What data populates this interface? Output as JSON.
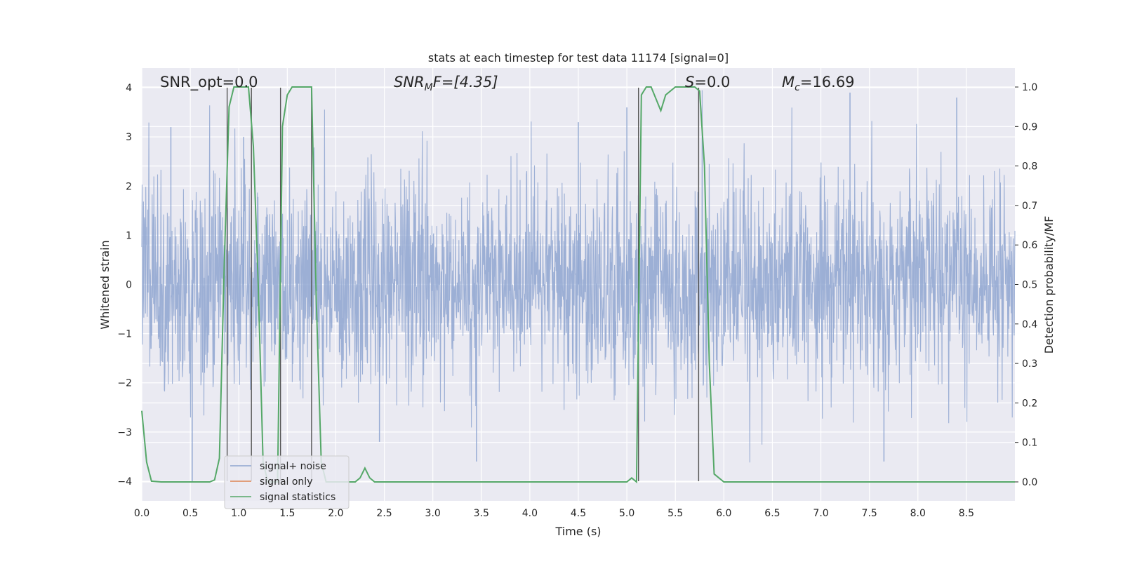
{
  "chart_data": {
    "type": "line",
    "title": "stats at each timestep for test data 11174 [signal=0]",
    "xlabel": "Time (s)",
    "ylabel": "Whitened strain",
    "ylabel_right": "Detection probability/MF",
    "xlim": [
      0.0,
      9.0
    ],
    "ylim": [
      -4.4,
      4.4
    ],
    "ylim_right": [
      -0.048,
      1.048
    ],
    "x_ticks": [
      "0.0",
      "0.5",
      "1.0",
      "1.5",
      "2.0",
      "2.5",
      "3.0",
      "3.5",
      "4.0",
      "4.5",
      "5.0",
      "5.5",
      "6.0",
      "6.5",
      "7.0",
      "7.5",
      "8.0",
      "8.5"
    ],
    "y_ticks": [
      "4",
      "3",
      "2",
      "1",
      "0",
      "−1",
      "−2",
      "−3",
      "−4"
    ],
    "y_ticks_right": [
      "1.0",
      "0.9",
      "0.8",
      "0.7",
      "0.6",
      "0.5",
      "0.4",
      "0.3",
      "0.2",
      "0.1",
      "0.0"
    ],
    "grid": true,
    "legend_position": "lower-left",
    "annotations": {
      "snr_opt": "SNR_opt=0.0",
      "snr_mf_main": "SNR",
      "snr_mf_sub": "M",
      "snr_mf_rest": "F=[4.35]",
      "s_main": "S",
      "s_rest": "=0.0",
      "mc_main": "M",
      "mc_sub": "c",
      "mc_rest": "=16.69"
    },
    "series": [
      {
        "name": "signal+ noise",
        "color": "#8ea5d0",
        "description_values": "dense whitened noise, amplitude roughly within [-4, 4], x from 0 to 9 s",
        "envelope_top_peaks": [
          [
            0.3,
            3.2
          ],
          [
            1.05,
            3.0
          ],
          [
            4.5,
            3.3
          ],
          [
            5.0,
            3.6
          ],
          [
            7.3,
            3.9
          ],
          [
            8.4,
            3.8
          ]
        ],
        "envelope_bottom_peaks": [
          [
            0.52,
            -4.0
          ],
          [
            3.45,
            -3.6
          ],
          [
            7.65,
            -3.6
          ],
          [
            2.45,
            -3.2
          ]
        ]
      },
      {
        "name": "signal only",
        "color": "#dd8452",
        "values": []
      },
      {
        "name": "signal statistics",
        "color": "#55a868",
        "axis": "right",
        "x": [
          0.0,
          0.05,
          0.1,
          0.2,
          0.5,
          0.7,
          0.75,
          0.8,
          0.85,
          0.9,
          0.95,
          1.0,
          1.05,
          1.1,
          1.15,
          1.2,
          1.25,
          1.3,
          1.35,
          1.4,
          1.45,
          1.5,
          1.55,
          1.7,
          1.75,
          1.8,
          1.85,
          1.9,
          2.0,
          2.1,
          2.2,
          2.25,
          2.3,
          2.35,
          2.4,
          2.45,
          3.0,
          4.0,
          5.0,
          5.05,
          5.1,
          5.15,
          5.2,
          5.25,
          5.3,
          5.35,
          5.4,
          5.5,
          5.6,
          5.7,
          5.75,
          5.8,
          5.85,
          5.9,
          6.0,
          7.0,
          8.0,
          9.0
        ],
        "values": [
          0.18,
          0.05,
          0.002,
          0.0,
          0.0,
          0.0,
          0.005,
          0.06,
          0.55,
          0.95,
          1.0,
          1.0,
          1.0,
          1.0,
          0.85,
          0.5,
          0.05,
          0.0,
          0.0,
          0.0,
          0.9,
          0.98,
          1.0,
          1.0,
          1.0,
          0.45,
          0.05,
          0.0,
          0.0,
          0.0,
          0.0,
          0.01,
          0.035,
          0.01,
          0.0,
          0.0,
          0.0,
          0.0,
          0.0,
          0.01,
          0.0,
          0.98,
          1.0,
          1.0,
          0.97,
          0.94,
          0.98,
          1.0,
          1.0,
          1.0,
          0.99,
          0.8,
          0.3,
          0.02,
          0.0,
          0.0,
          0.0,
          0.0
        ]
      }
    ],
    "markers": {
      "color": "#555555",
      "lines": [
        {
          "x": 0.88,
          "y_top": 4.0,
          "y_bottom": -4.0
        },
        {
          "x": 1.13,
          "y_top": 4.0,
          "y_bottom": -4.0
        },
        {
          "x": 1.43,
          "y_top": 4.0,
          "y_bottom": -4.0
        },
        {
          "x": 1.75,
          "y_top": 4.0,
          "y_bottom": -4.0
        },
        {
          "x": 5.12,
          "y_top": 4.0,
          "y_bottom": -4.0
        },
        {
          "x": 5.74,
          "y_top": 4.0,
          "y_bottom": -4.0
        }
      ]
    }
  },
  "colors": {
    "axes_bg": "#eaeaf2",
    "grid": "#ffffff",
    "noise": "#8ea5d0",
    "signal_only": "#dd8452",
    "statistics": "#55a868",
    "marker": "#555555"
  }
}
